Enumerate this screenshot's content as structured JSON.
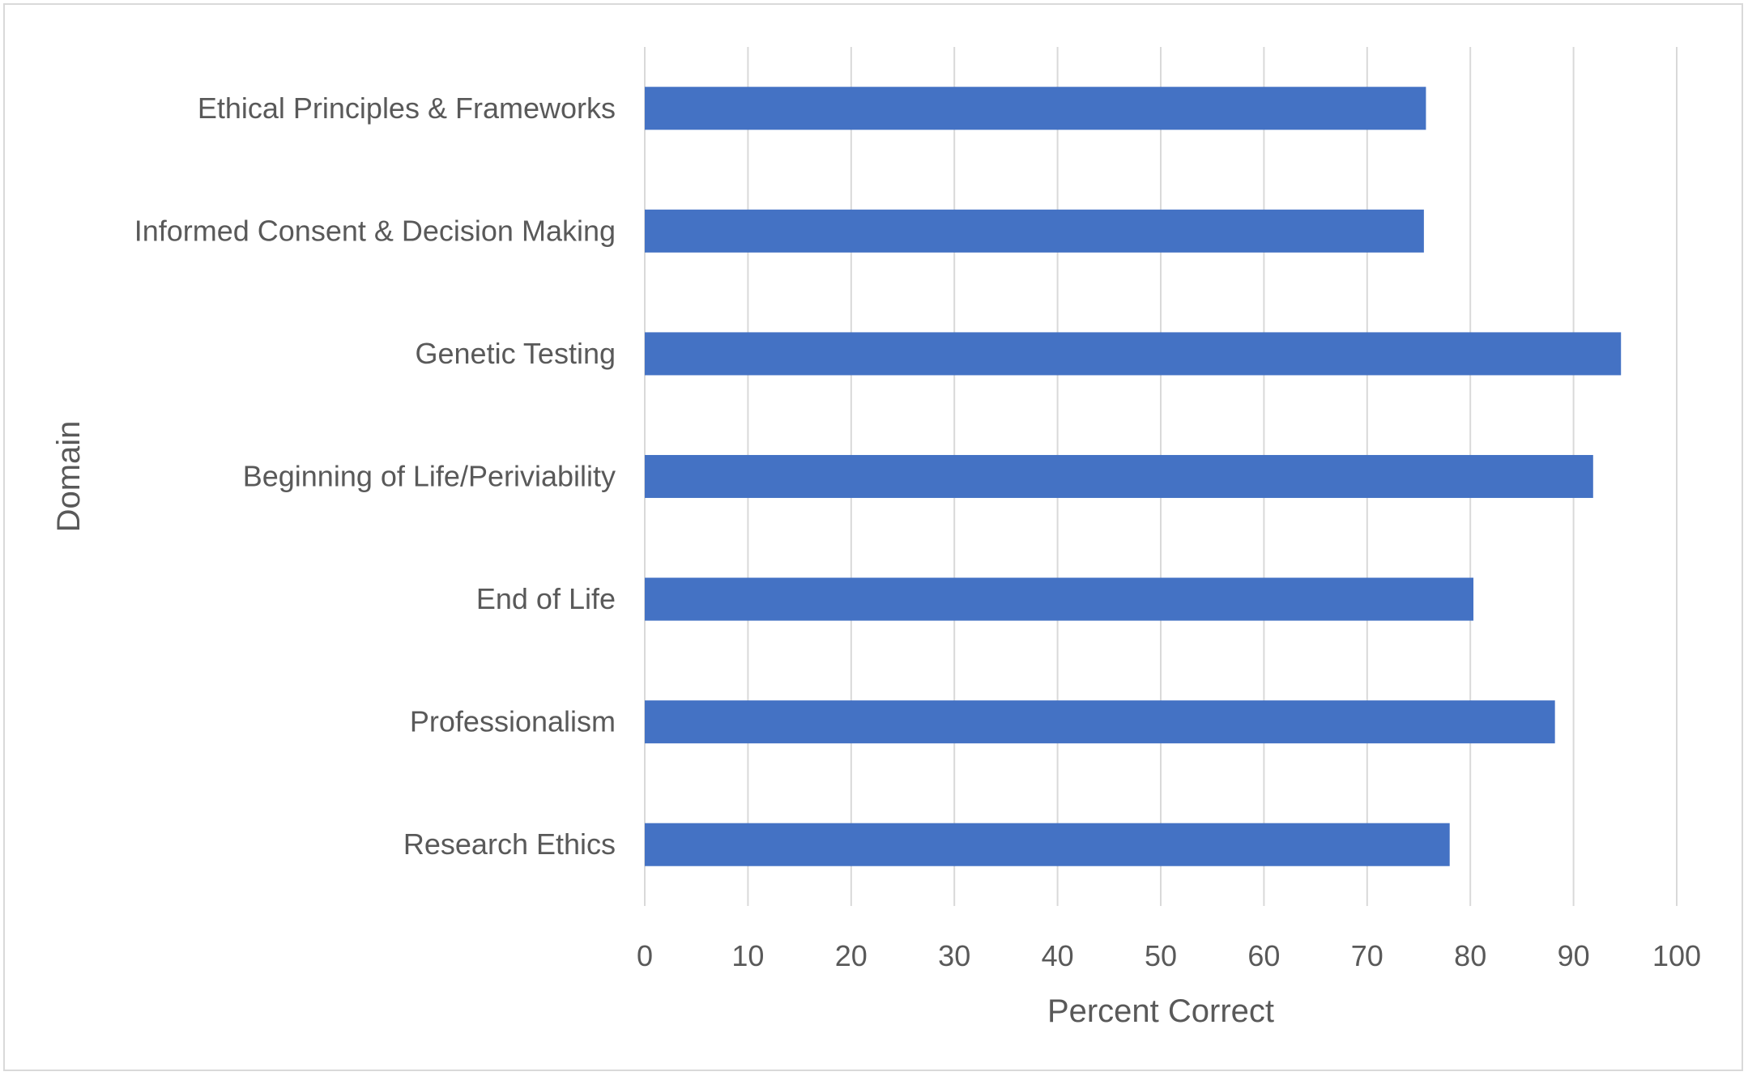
{
  "chart_data": {
    "type": "bar",
    "orientation": "horizontal",
    "categories": [
      "Ethical Principles & Frameworks",
      "Informed Consent & Decision Making",
      "Genetic Testing",
      "Beginning of Life/Periviability",
      "End of Life",
      "Professionalism",
      "Research Ethics"
    ],
    "values": [
      75.7,
      75.5,
      94.6,
      91.9,
      80.3,
      88.2,
      78.0
    ],
    "xlabel": "Percent Correct",
    "ylabel": "Domain",
    "xlim": [
      0,
      100
    ],
    "xticks": [
      "0",
      "10",
      "20",
      "30",
      "40",
      "50",
      "60",
      "70",
      "80",
      "90",
      "100"
    ],
    "grid": "vertical",
    "legend": "none",
    "bar_color": "#4472c4",
    "grid_color": "#d9d9d9"
  }
}
